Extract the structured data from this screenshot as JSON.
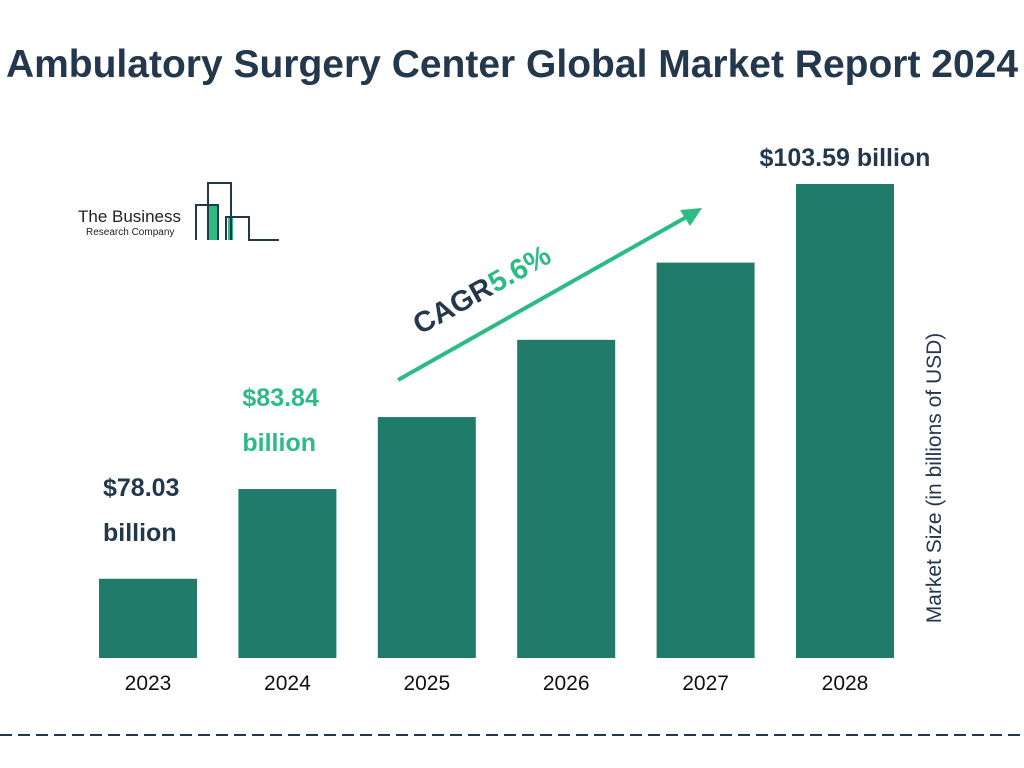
{
  "chart_data": {
    "type": "bar",
    "title": "Ambulatory Surgery Center Global Market Report 2024",
    "categories": [
      "2023",
      "2024",
      "2025",
      "2026",
      "2027",
      "2028"
    ],
    "values": [
      78.03,
      83.84,
      88.5,
      93.5,
      98.5,
      103.59
    ],
    "data_labels": [
      {
        "category": "2023",
        "lines": [
          "$78.03",
          "billion"
        ],
        "color": "#24384d"
      },
      {
        "category": "2024",
        "lines": [
          "$83.84",
          "billion"
        ],
        "color": "#2dbb84"
      },
      {
        "category": "2028",
        "lines": [
          "$103.59 billion"
        ],
        "color": "#24384d"
      }
    ],
    "ylabel": "Market Size (in billions of USD)",
    "xlabel": "",
    "grid": false,
    "annotation": {
      "label": "CAGR",
      "value": "5.6%",
      "label_color": "#24384d",
      "value_color": "#2dbb84"
    },
    "bar_color": "#217b6b"
  },
  "logo": {
    "line1": "The Business",
    "line2": "Research Company"
  }
}
